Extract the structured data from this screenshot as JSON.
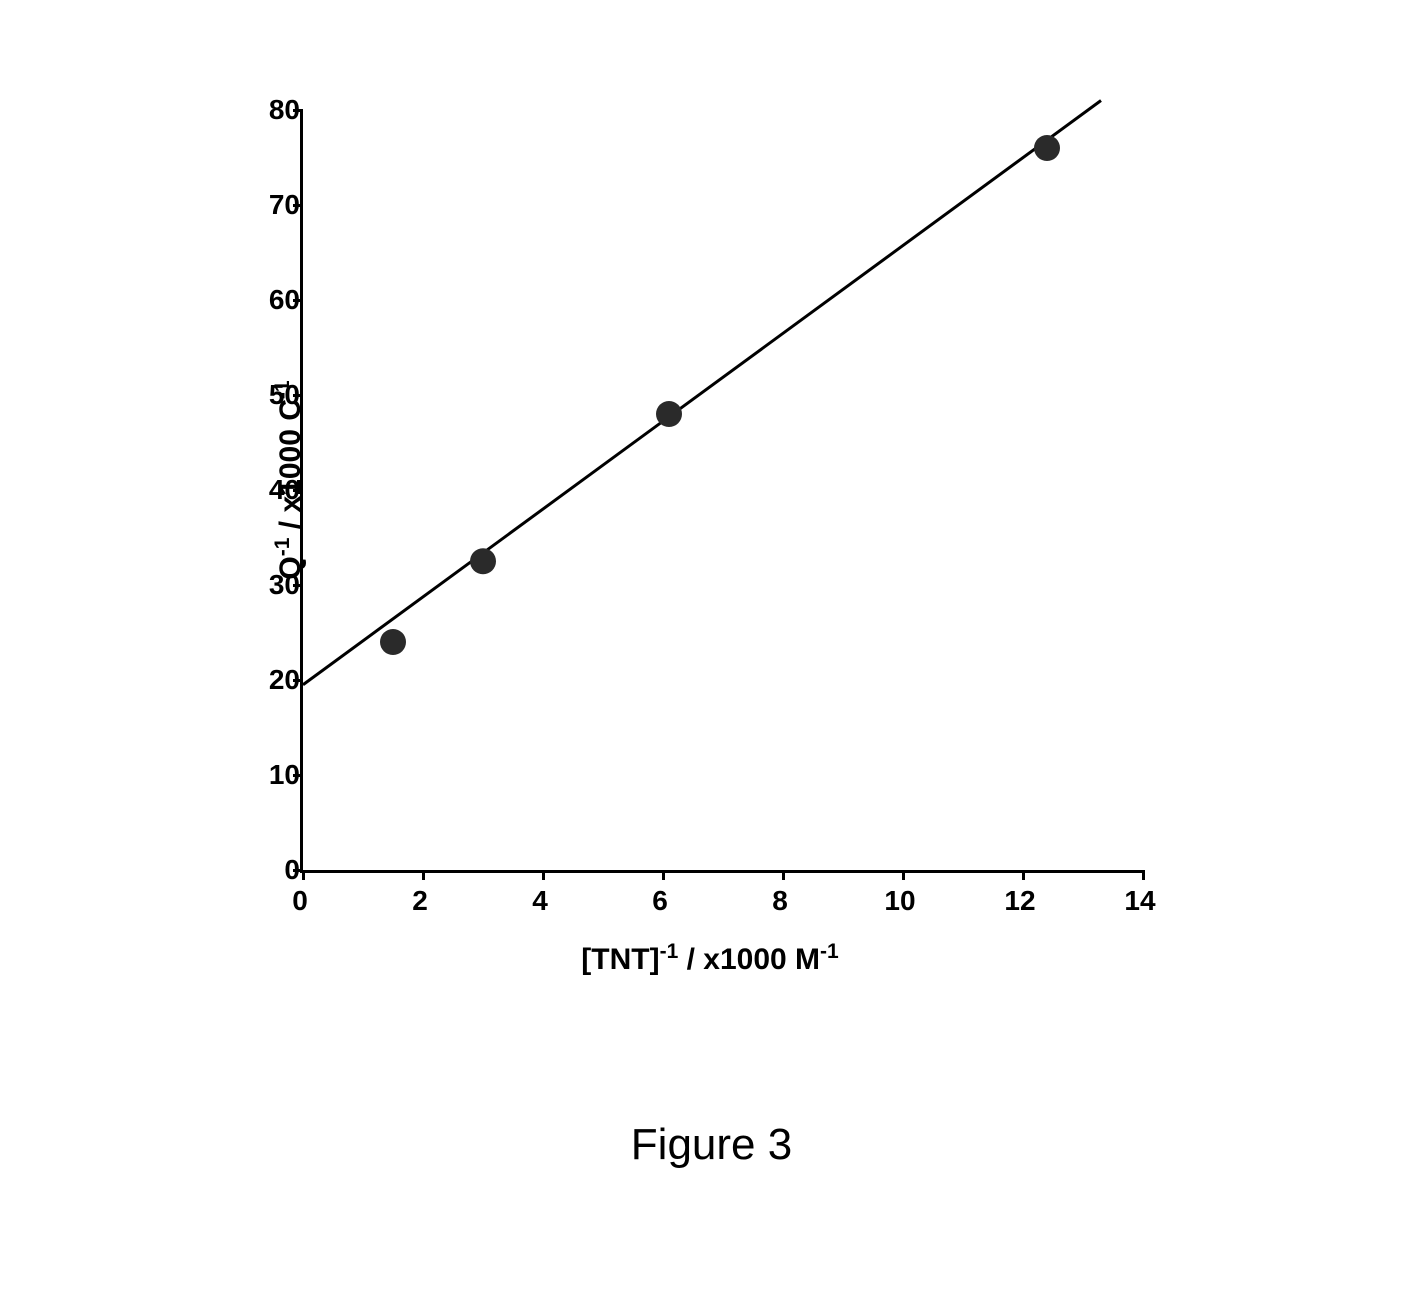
{
  "chart": {
    "type": "scatter",
    "xlim": [
      0,
      14
    ],
    "ylim": [
      0,
      80
    ],
    "xtick_step": 2,
    "ytick_step": 10,
    "xticks": [
      0,
      2,
      4,
      6,
      8,
      10,
      12,
      14
    ],
    "yticks": [
      0,
      10,
      20,
      30,
      40,
      50,
      60,
      70,
      80
    ],
    "xlabel_html": "[TNT]<sup>-1</sup> / x1000 M<sup>-1</sup>",
    "ylabel_html": "Q<sup>-1</sup> / x1000 C<sup>-1</sup>",
    "points": [
      {
        "x": 1.5,
        "y": 24
      },
      {
        "x": 3.0,
        "y": 32.5
      },
      {
        "x": 6.1,
        "y": 48
      },
      {
        "x": 12.4,
        "y": 76
      }
    ],
    "marker_radius": 13,
    "marker_color": "#2a2a2a",
    "line": {
      "x1": 0,
      "y1": 19.5,
      "x2": 13.3,
      "y2": 81
    },
    "line_color": "#000000",
    "line_width": 3,
    "background_color": "#ffffff",
    "tick_label_fontsize": 28,
    "axis_title_fontsize": 30,
    "font_weight": "bold"
  },
  "caption": "Figure 3"
}
